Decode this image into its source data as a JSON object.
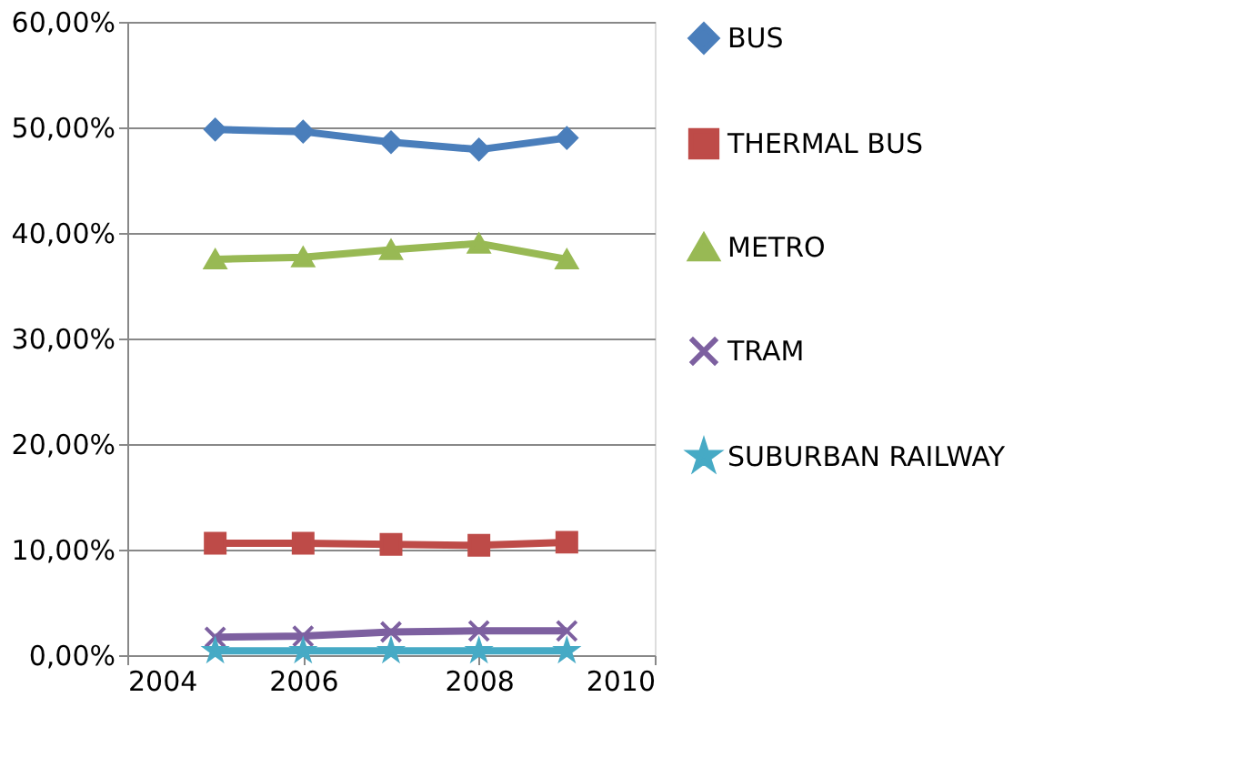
{
  "chart_data": {
    "type": "line",
    "x": [
      2005,
      2006,
      2007,
      2008,
      2009
    ],
    "series": [
      {
        "name": "BUS",
        "color": "#4a7ebb",
        "marker": "diamond",
        "values": [
          49.8,
          49.6,
          48.6,
          47.9,
          49.0
        ]
      },
      {
        "name": "THERMAL BUS",
        "color": "#be4b48",
        "marker": "square",
        "values": [
          10.6,
          10.6,
          10.5,
          10.4,
          10.7
        ]
      },
      {
        "name": "METRO",
        "color": "#98b954",
        "marker": "triangle",
        "values": [
          37.5,
          37.7,
          38.4,
          39.0,
          37.5
        ]
      },
      {
        "name": "TRAM",
        "color": "#7d60a0",
        "marker": "cross",
        "values": [
          1.7,
          1.8,
          2.2,
          2.3,
          2.3
        ]
      },
      {
        "name": "SUBURBAN RAILWAY",
        "color": "#46aac5",
        "marker": "star",
        "values": [
          0.4,
          0.4,
          0.4,
          0.4,
          0.4
        ]
      }
    ],
    "xlim": [
      2004,
      2010
    ],
    "xticks": [
      2004,
      2006,
      2008,
      2010
    ],
    "ylim": [
      0,
      60
    ],
    "yticks": [
      {
        "value": 0,
        "label": "0,00%"
      },
      {
        "value": 10,
        "label": "10,00%"
      },
      {
        "value": 20,
        "label": "20,00%"
      },
      {
        "value": 30,
        "label": "30,00%"
      },
      {
        "value": 40,
        "label": "40,00%"
      },
      {
        "value": 50,
        "label": "50,00%"
      },
      {
        "value": 60,
        "label": "60,00%"
      }
    ],
    "grid": "y",
    "legend": "right",
    "line_style": "solid"
  }
}
